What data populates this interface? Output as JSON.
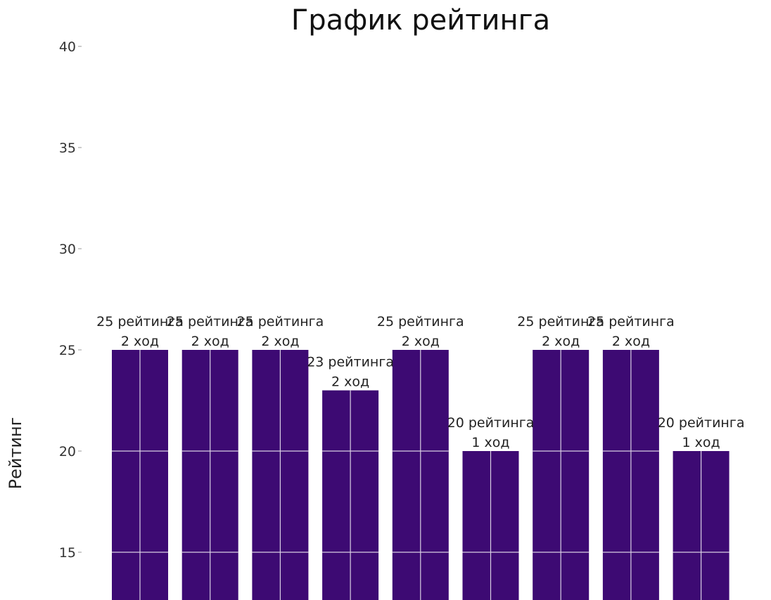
{
  "chart_data": {
    "type": "bar",
    "title": "График рейтинга",
    "xlabel": "",
    "ylabel": "Рейтинг",
    "ylim": [
      12.5,
      40
    ],
    "yticks": [
      15,
      20,
      25,
      30,
      35,
      40
    ],
    "grid": true,
    "bar_color": "#3d0a73",
    "grid_color": "#d9cfe3",
    "values": [
      25,
      25,
      25,
      23,
      25,
      20,
      25,
      25,
      20
    ],
    "labels": [
      [
        "25 рейтинга",
        "2 ход"
      ],
      [
        "25 рейтинга",
        "2 ход"
      ],
      [
        "25 рейтинга",
        "2 ход"
      ],
      [
        "23 рейтинга",
        "2 ход"
      ],
      [
        "25 рейтинга",
        "2 ход"
      ],
      [
        "20 рейтинга",
        "1 ход"
      ],
      [
        "25 рейтинга",
        "2 ход"
      ],
      [
        "25 рейтинга",
        "2 ход"
      ],
      [
        "20 рейтинга",
        "1 ход"
      ]
    ]
  }
}
